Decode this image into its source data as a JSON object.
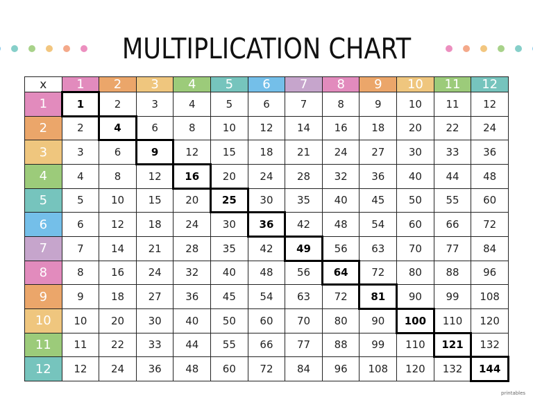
{
  "title": "MULTIPLICATION CHART",
  "corner_label": "x",
  "dot_colors_left": [
    "#c79ad0",
    "#7fc6ea",
    "#86cfc9",
    "#a8d28a",
    "#f2c67f",
    "#f4a98a",
    "#ec8fbf"
  ],
  "dot_colors_right": [
    "#ec8fbf",
    "#f4a98a",
    "#f2c67f",
    "#a8d28a",
    "#86cfc9",
    "#7fc6ea",
    "#c79ad0"
  ],
  "header_colors": [
    "#e28bbd",
    "#eba66a",
    "#efc67e",
    "#9ccb7a",
    "#76c4bd",
    "#74bfe9",
    "#c6a5cc",
    "#e28bbd",
    "#eba66a",
    "#efc67e",
    "#9ccb7a",
    "#76c4bd"
  ],
  "headers": [
    "1",
    "2",
    "3",
    "4",
    "5",
    "6",
    "7",
    "8",
    "9",
    "10",
    "11",
    "12"
  ],
  "rows": [
    [
      "1",
      "2",
      "3",
      "4",
      "5",
      "6",
      "7",
      "8",
      "9",
      "10",
      "11",
      "12"
    ],
    [
      "2",
      "4",
      "6",
      "8",
      "10",
      "12",
      "14",
      "16",
      "18",
      "20",
      "22",
      "24"
    ],
    [
      "3",
      "6",
      "9",
      "12",
      "15",
      "18",
      "21",
      "24",
      "27",
      "30",
      "33",
      "36"
    ],
    [
      "4",
      "8",
      "12",
      "16",
      "20",
      "24",
      "28",
      "32",
      "36",
      "40",
      "44",
      "48"
    ],
    [
      "5",
      "10",
      "15",
      "20",
      "25",
      "30",
      "35",
      "40",
      "45",
      "50",
      "55",
      "60"
    ],
    [
      "6",
      "12",
      "18",
      "24",
      "30",
      "36",
      "42",
      "48",
      "54",
      "60",
      "66",
      "72"
    ],
    [
      "7",
      "14",
      "21",
      "28",
      "35",
      "42",
      "49",
      "56",
      "63",
      "70",
      "77",
      "84"
    ],
    [
      "8",
      "16",
      "24",
      "32",
      "40",
      "48",
      "56",
      "64",
      "72",
      "80",
      "88",
      "96"
    ],
    [
      "9",
      "18",
      "27",
      "36",
      "45",
      "54",
      "63",
      "72",
      "81",
      "90",
      "99",
      "108"
    ],
    [
      "10",
      "20",
      "30",
      "40",
      "50",
      "60",
      "70",
      "80",
      "90",
      "100",
      "110",
      "120"
    ],
    [
      "11",
      "22",
      "33",
      "44",
      "55",
      "66",
      "77",
      "88",
      "99",
      "110",
      "121",
      "132"
    ],
    [
      "12",
      "24",
      "36",
      "48",
      "60",
      "72",
      "84",
      "96",
      "108",
      "120",
      "132",
      "144"
    ]
  ],
  "brand": "printables"
}
